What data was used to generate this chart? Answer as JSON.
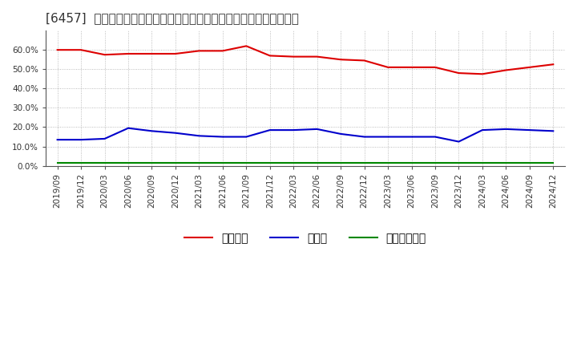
{
  "title": "[6457]  自己資本、のれん、繰延税金資産の総資産に対する比率の推移",
  "x_labels": [
    "2019/09",
    "2019/12",
    "2020/03",
    "2020/06",
    "2020/09",
    "2020/12",
    "2021/03",
    "2021/06",
    "2021/09",
    "2021/12",
    "2022/03",
    "2022/06",
    "2022/09",
    "2022/12",
    "2023/03",
    "2023/06",
    "2023/09",
    "2023/12",
    "2024/03",
    "2024/06",
    "2024/09",
    "2024/12"
  ],
  "jikoshihon": [
    60.0,
    60.0,
    57.5,
    58.0,
    58.0,
    58.0,
    59.5,
    59.5,
    62.0,
    57.0,
    56.5,
    56.5,
    55.0,
    54.5,
    51.0,
    51.0,
    51.0,
    48.0,
    47.5,
    49.5,
    51.0,
    52.5
  ],
  "noren": [
    13.5,
    13.5,
    14.0,
    19.5,
    18.0,
    17.0,
    15.5,
    15.0,
    15.0,
    18.5,
    18.5,
    19.0,
    16.5,
    15.0,
    15.0,
    15.0,
    15.0,
    12.5,
    18.5,
    19.0,
    18.5,
    18.0
  ],
  "kurinobe": [
    1.5,
    1.5,
    1.5,
    1.5,
    1.5,
    1.5,
    1.5,
    1.5,
    1.5,
    1.5,
    1.5,
    1.5,
    1.5,
    1.5,
    1.5,
    1.5,
    1.5,
    1.5,
    1.5,
    1.5,
    1.5,
    1.5
  ],
  "line_colors": {
    "jikoshihon": "#dd0000",
    "noren": "#0000cc",
    "kurinobe": "#008800"
  },
  "legend_labels": {
    "jikoshihon": "自己資本",
    "noren": "のれん",
    "kurinobe": "繰延税金資産"
  },
  "ylim": [
    0,
    70
  ],
  "yticks": [
    0,
    10,
    20,
    30,
    40,
    50,
    60
  ],
  "background_color": "#ffffff",
  "plot_bg_color": "#ffffff",
  "grid_color": "#aaaaaa",
  "title_fontsize": 11,
  "tick_fontsize": 7.5,
  "legend_fontsize": 10
}
